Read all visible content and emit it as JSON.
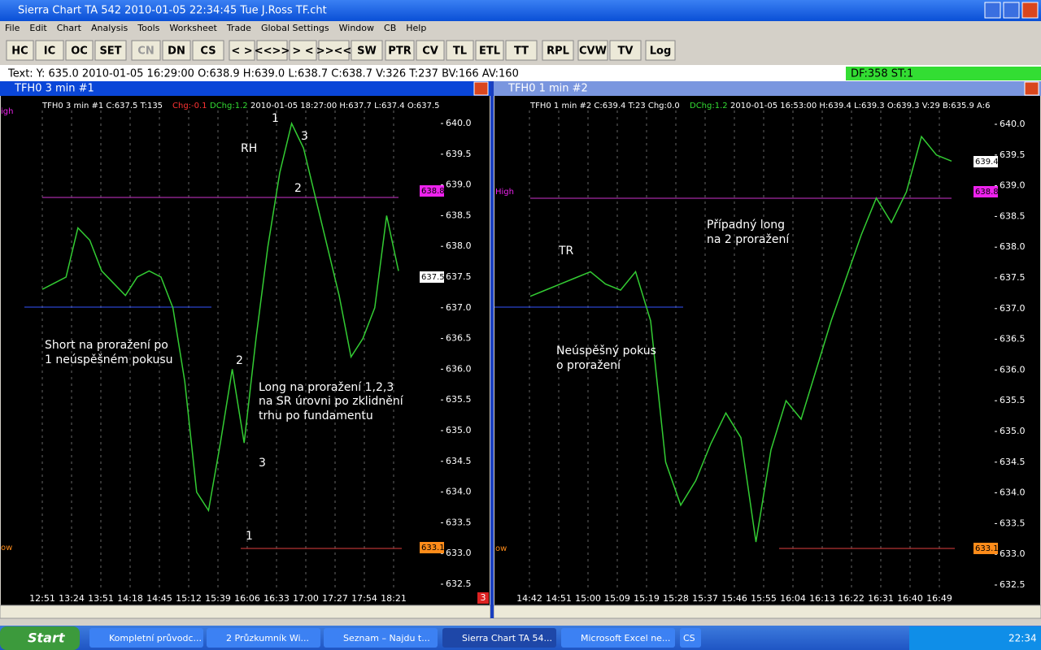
{
  "window": {
    "title": "Sierra Chart TA 542  2010-01-05  22:34:45  Tue   J.Ross TF.cht"
  },
  "menu": [
    "File",
    "Edit",
    "Chart",
    "Analysis",
    "Tools",
    "Worksheet",
    "Trade",
    "Global Settings",
    "Window",
    "CB",
    "Help"
  ],
  "toolbar": [
    "HC",
    "IC",
    "OC",
    "SET",
    "CN",
    "DN",
    "CS",
    "< >",
    "<<>>",
    "> <",
    ">><<",
    "SW",
    "PTR",
    "CV",
    "TL",
    "ETL",
    "TT",
    "RPL",
    "CVW",
    "TV",
    "Log"
  ],
  "status": {
    "text": "Text: Y: 635.0  2010-01-05  16:29:00  O:638.9  H:639.0  L:638.7  C:638.7  V:326  T:237  BV:166  AV:160",
    "right": "DF:358  ST:1"
  },
  "panes": [
    {
      "title": "TFH0  3 min   #1",
      "header": [
        "TFH0  3 min   #1  C:637.5  T:135",
        "Chg:-0.1",
        "DChg:1.2",
        "2010-01-05   18:27:00  H:637.7  L:637.4  O:637.5"
      ],
      "price_ticks": [
        "640.0",
        "639.5",
        "639.0",
        "638.5",
        "638.0",
        "637.5",
        "637.0",
        "636.5",
        "636.0",
        "635.5",
        "635.0",
        "634.5",
        "634.0",
        "633.5",
        "633.0",
        "632.5"
      ],
      "time_labels": [
        "12:51",
        "13:24",
        "13:51",
        "14:18",
        "14:45",
        "15:12",
        "15:39",
        "16:06",
        "16:33",
        "17:00",
        "17:27",
        "17:54",
        "18:21"
      ],
      "level_labels": [
        "igh",
        "ow"
      ],
      "price_tags": [
        "638.8",
        "637.5",
        "633.1"
      ],
      "closes": [
        637.3,
        637.4,
        637.5,
        638.3,
        638.1,
        637.6,
        637.4,
        637.2,
        637.5,
        637.6,
        637.5,
        637.0,
        635.8,
        634.0,
        633.7,
        634.8,
        636.0,
        634.8,
        636.5,
        638.0,
        639.2,
        640.0,
        639.6,
        638.8,
        638.0,
        637.2,
        636.2,
        636.5,
        637.0,
        638.5,
        637.6
      ],
      "annotations": [
        "RH",
        "1",
        "3",
        "2",
        "Short na proražení po",
        "1 neúspěšném pokusu",
        "2",
        "Long na proražení 1,2,3",
        "na SR úrovni po zklidnění",
        "trhu po fundamentu",
        "3",
        "1"
      ],
      "corner": "3"
    },
    {
      "title": "TFH0  1 min   #2",
      "header": [
        "TFH0  1 min   #2  C:639.4  T:23  Chg:0.0",
        "DChg:1.2",
        "2010-01-05   16:53:00  H:639.4  L:639.3  O:639.3  V:29  B:635.9  A:6"
      ],
      "price_ticks": [
        "640.0",
        "639.5",
        "639.0",
        "638.5",
        "638.0",
        "637.5",
        "637.0",
        "636.5",
        "636.0",
        "635.5",
        "635.0",
        "634.5",
        "634.0",
        "633.5",
        "633.0",
        "632.5"
      ],
      "time_labels": [
        "14:42",
        "14:51",
        "15:00",
        "15:09",
        "15:19",
        "15:28",
        "15:37",
        "15:46",
        "15:55",
        "16:04",
        "16:13",
        "16:22",
        "16:31",
        "16:40",
        "16:49"
      ],
      "level_labels": [
        "High",
        "ow"
      ],
      "price_tags": [
        "639.4",
        "638.8",
        "633.1"
      ],
      "closes": [
        637.2,
        637.3,
        637.4,
        637.5,
        637.6,
        637.4,
        637.3,
        637.6,
        636.8,
        634.5,
        633.8,
        634.2,
        634.8,
        635.3,
        634.9,
        633.2,
        634.7,
        635.5,
        635.2,
        636.0,
        636.8,
        637.5,
        638.2,
        638.8,
        638.4,
        638.9,
        639.8,
        639.5,
        639.4
      ],
      "annotations": [
        "TR",
        "Případný long",
        "na 2 proražení",
        "Neúspěšný pokus",
        "o proražení"
      ]
    }
  ],
  "taskbar": {
    "start": "Start",
    "items": [
      "Kompletní průvodc...",
      "2 Průzkumník Wi...",
      "Seznam – Najdu t...",
      "Sierra Chart TA 54...",
      "Microsoft Excel ne...",
      "CS"
    ],
    "clock": "22:34"
  }
}
